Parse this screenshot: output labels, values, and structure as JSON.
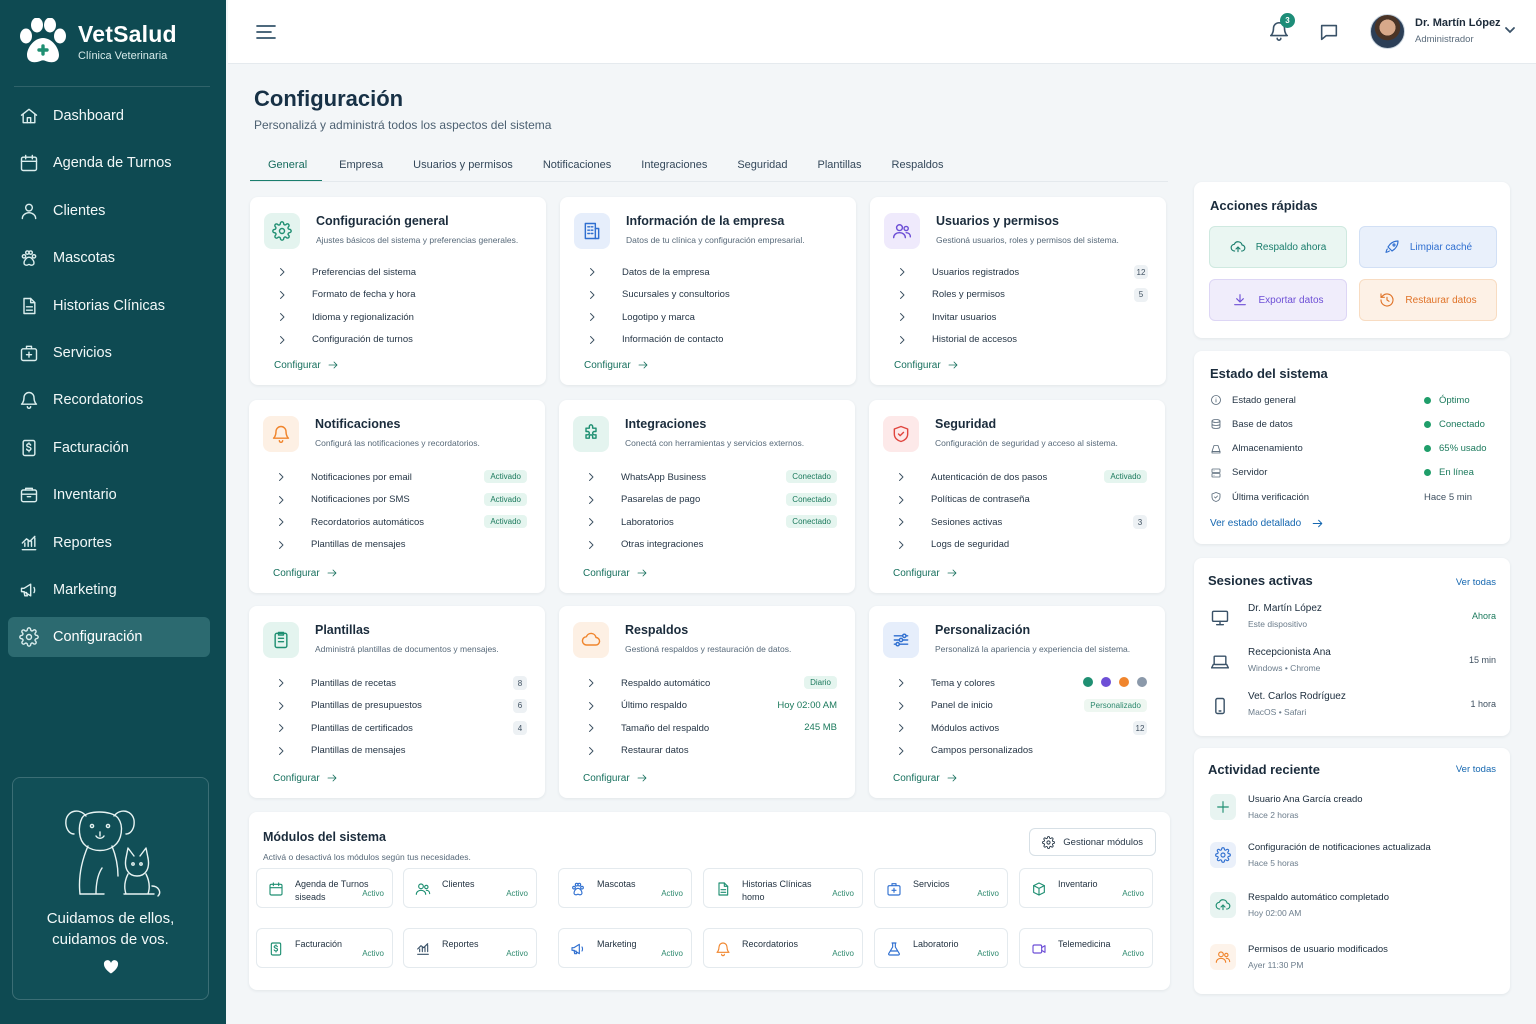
{
  "brand": {
    "name": "VetSalud",
    "subtitle": "Clínica Veterinaria"
  },
  "sidebar": {
    "items": [
      {
        "label": "Dashboard",
        "icon": "home-icon"
      },
      {
        "label": "Agenda de Turnos",
        "icon": "calendar-icon"
      },
      {
        "label": "Clientes",
        "icon": "user-icon"
      },
      {
        "label": "Mascotas",
        "icon": "paw-icon"
      },
      {
        "label": "Historias Clínicas",
        "icon": "document-icon"
      },
      {
        "label": "Servicios",
        "icon": "medical-kit-icon"
      },
      {
        "label": "Recordatorios",
        "icon": "bell-icon"
      },
      {
        "label": "Facturación",
        "icon": "invoice-icon"
      },
      {
        "label": "Inventario",
        "icon": "inventory-icon"
      },
      {
        "label": "Reportes",
        "icon": "chart-icon"
      },
      {
        "label": "Marketing",
        "icon": "megaphone-icon"
      },
      {
        "label": "Configuración",
        "icon": "gear-icon",
        "active": true
      }
    ],
    "footer_line1": "Cuidamos de ellos,",
    "footer_line2": "cuidamos de vos."
  },
  "topbar": {
    "notifications_count": "3",
    "user_name": "Dr. Martín López",
    "user_role": "Administrador"
  },
  "header": {
    "title": "Configuración",
    "subtitle": "Personalizá y administrá todos los aspectos del sistema"
  },
  "tabs": [
    "General",
    "Empresa",
    "Usuarios y permisos",
    "Notificaciones",
    "Integraciones",
    "Seguridad",
    "Plantillas",
    "Respaldos"
  ],
  "cards": [
    {
      "title": "Configuración general",
      "subtitle": "Ajustes básicos del sistema y preferencias generales.",
      "rows": [
        {
          "label": "Preferencias del sistema"
        },
        {
          "label": "Formato de fecha y hora"
        },
        {
          "label": "Idioma y regionalización"
        },
        {
          "label": "Configuración de turnos"
        }
      ],
      "action": "Configurar"
    },
    {
      "title": "Información de la empresa",
      "subtitle": "Datos de tu clínica y configuración empresarial.",
      "rows": [
        {
          "label": "Datos de la empresa"
        },
        {
          "label": "Sucursales y consultorios"
        },
        {
          "label": "Logotipo y marca"
        },
        {
          "label": "Información de contacto"
        }
      ],
      "action": "Configurar"
    },
    {
      "title": "Usuarios y permisos",
      "subtitle": "Gestioná usuarios, roles y permisos del sistema.",
      "rows": [
        {
          "label": "Usuarios registrados",
          "count": "12"
        },
        {
          "label": "Roles y permisos",
          "count": "5"
        },
        {
          "label": "Invitar usuarios"
        },
        {
          "label": "Historial de accesos"
        }
      ],
      "action": "Configurar"
    },
    {
      "title": "Notificaciones",
      "subtitle": "Configurá las notificaciones y recordatorios.",
      "rows": [
        {
          "label": "Notificaciones por email",
          "badge": "Activado"
        },
        {
          "label": "Notificaciones por SMS",
          "badge": "Activado"
        },
        {
          "label": "Recordatorios automáticos",
          "badge": "Activado"
        },
        {
          "label": "Plantillas de mensajes"
        }
      ],
      "action": "Configurar"
    },
    {
      "title": "Integraciones",
      "subtitle": "Conectá con herramientas y servicios externos.",
      "rows": [
        {
          "label": "WhatsApp Business",
          "badge": "Conectado"
        },
        {
          "label": "Pasarelas de pago",
          "badge": "Conectado"
        },
        {
          "label": "Laboratorios",
          "badge": "Conectado"
        },
        {
          "label": "Otras integraciones"
        }
      ],
      "action": "Configurar"
    },
    {
      "title": "Seguridad",
      "subtitle": "Configuración de seguridad y acceso al sistema.",
      "rows": [
        {
          "label": "Autenticación de dos pasos",
          "badge": "Activado"
        },
        {
          "label": "Políticas de contraseña"
        },
        {
          "label": "Sesiones activas",
          "count": "3"
        },
        {
          "label": "Logs de seguridad"
        }
      ],
      "action": "Configurar"
    },
    {
      "title": "Plantillas",
      "subtitle": "Administrá plantillas de documentos y mensajes.",
      "rows": [
        {
          "label": "Plantillas de recetas",
          "count": "8"
        },
        {
          "label": "Plantillas de presupuestos",
          "count": "6"
        },
        {
          "label": "Plantillas de certificados",
          "count": "4"
        },
        {
          "label": "Plantillas de mensajes"
        }
      ],
      "action": "Configurar"
    },
    {
      "title": "Respaldos",
      "subtitle": "Gestioná respaldos y restauración de datos.",
      "rows": [
        {
          "label": "Respaldo automático",
          "badge": "Diario"
        },
        {
          "label": "Último respaldo",
          "value": "Hoy 02:00 AM"
        },
        {
          "label": "Tamaño del respaldo",
          "value": "245 MB"
        },
        {
          "label": "Restaurar datos"
        }
      ],
      "action": "Configurar"
    },
    {
      "title": "Personalización",
      "subtitle": "Personalizá la apariencia y experiencia del sistema.",
      "rows": [
        {
          "label": "Tema y colores",
          "swatches": [
            "#1f8f72",
            "#6d4fd6",
            "#f0852d",
            "#8b99aa"
          ]
        },
        {
          "label": "Panel de inicio",
          "badge": "Personalizado"
        },
        {
          "label": "Módulos activos",
          "count": "12"
        },
        {
          "label": "Campos personalizados"
        }
      ],
      "action": "Configurar"
    }
  ],
  "modules": {
    "title": "Módulos del sistema",
    "subtitle": "Activá o desactivá los módulos según tus necesidades.",
    "manage_label": "Gestionar módulos",
    "items": [
      {
        "name": "Agenda de Turnos siseads",
        "status": "Activo",
        "icon": "calendar-icon",
        "color": "#1f8f72"
      },
      {
        "name": "Clientes",
        "status": "Activo",
        "icon": "users-icon",
        "color": "#1f8f72"
      },
      {
        "name": "Mascotas",
        "status": "Activo",
        "icon": "paw-icon",
        "color": "#2f6fd0"
      },
      {
        "name": "Historias Clínicas homo",
        "status": "Activo",
        "icon": "document-icon",
        "color": "#1f8f72"
      },
      {
        "name": "Servicios",
        "status": "Activo",
        "icon": "medical-kit-icon",
        "color": "#2f6fd0"
      },
      {
        "name": "Inventario",
        "status": "Activo",
        "icon": "box-icon",
        "color": "#1f8f72"
      },
      {
        "name": "Facturación",
        "status": "Activo",
        "icon": "invoice-icon",
        "color": "#1f8f72"
      },
      {
        "name": "Reportes",
        "status": "Activo",
        "icon": "chart-icon",
        "color": "#3a5268"
      },
      {
        "name": "Marketing",
        "status": "Activo",
        "icon": "megaphone-icon",
        "color": "#2f6fd0"
      },
      {
        "name": "Recordatorios",
        "status": "Activo",
        "icon": "bell-icon",
        "color": "#f0852d"
      },
      {
        "name": "Laboratorio",
        "status": "Activo",
        "icon": "flask-icon",
        "color": "#2f6fd0"
      },
      {
        "name": "Telemedicina",
        "status": "Activo",
        "icon": "video-icon",
        "color": "#6d4fd6"
      }
    ]
  },
  "quick_actions": {
    "title": "Acciones rápidas",
    "items": [
      {
        "label": "Respaldo ahora",
        "icon": "cloud-upload-icon"
      },
      {
        "label": "Limpiar caché",
        "icon": "rocket-icon"
      },
      {
        "label": "Exportar datos",
        "icon": "download-icon"
      },
      {
        "label": "Restaurar datos",
        "icon": "restore-icon"
      }
    ]
  },
  "system_status": {
    "title": "Estado del sistema",
    "rows": [
      {
        "label": "Estado general",
        "value": "Óptimo",
        "dot": true
      },
      {
        "label": "Base de datos",
        "value": "Conectado",
        "dot": true
      },
      {
        "label": "Almacenamiento",
        "value": "65% usado",
        "dot": true
      },
      {
        "label": "Servidor",
        "value": "En línea",
        "dot": true
      },
      {
        "label": "Última verificación",
        "value": "Hace 5 min",
        "dot": false
      }
    ],
    "link": "Ver estado detallado"
  },
  "sessions": {
    "title": "Sesiones activas",
    "link": "Ver todas",
    "items": [
      {
        "name": "Dr. Martín López",
        "detail": "Este dispositivo",
        "time": "Ahora",
        "device": "monitor-icon"
      },
      {
        "name": "Recepcionista Ana",
        "detail": "Windows • Chrome",
        "time": "15 min",
        "device": "laptop-icon"
      },
      {
        "name": "Vet. Carlos Rodríguez",
        "detail": "MacOS • Safari",
        "time": "1 hora",
        "device": "phone-icon"
      }
    ]
  },
  "activity": {
    "title": "Actividad reciente",
    "link": "Ver todas",
    "items": [
      {
        "text": "Usuario Ana García creado",
        "time": "Hace 2 horas",
        "icon": "plus-icon",
        "color": "#1f8f72"
      },
      {
        "text": "Configuración de notificaciones actualizada",
        "time": "Hace 5 horas",
        "icon": "gear-icon",
        "color": "#2f6fd0"
      },
      {
        "text": "Respaldo automático completado",
        "time": "Hoy 02:00 AM",
        "icon": "cloud-upload-icon",
        "color": "#1f8f72"
      },
      {
        "text": "Permisos de usuario modificados",
        "time": "Ayer 11:30 PM",
        "icon": "users-icon",
        "color": "#f0852d"
      }
    ]
  }
}
